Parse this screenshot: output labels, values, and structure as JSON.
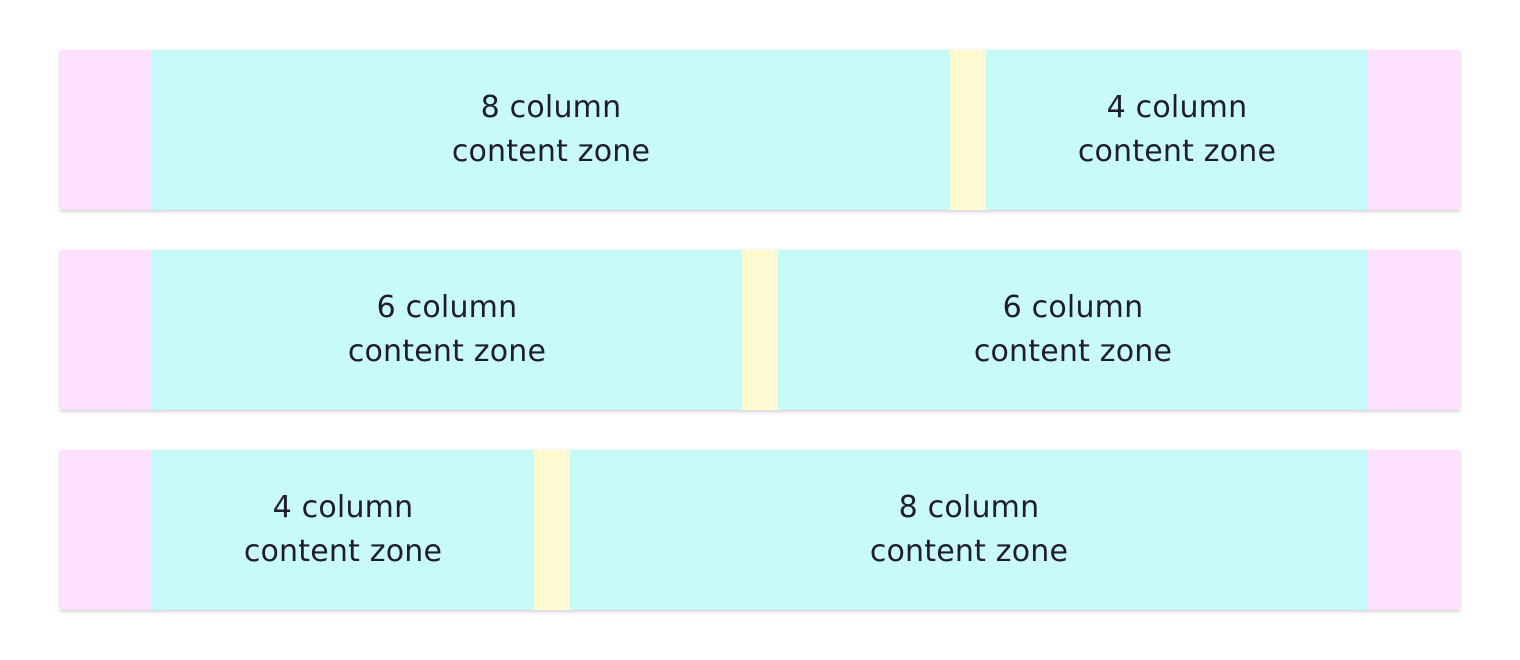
{
  "colors": {
    "margin": "#fde0fb",
    "gutter": "#fffad2",
    "content_zone": "#c8fafa",
    "text": "#1f1d2b"
  },
  "rows": [
    {
      "zones": [
        {
          "line1": "8 column",
          "line2": "content zone"
        },
        {
          "line1": "4 column",
          "line2": "content zone"
        }
      ]
    },
    {
      "zones": [
        {
          "line1": "6 column",
          "line2": "content zone"
        },
        {
          "line1": "6 column",
          "line2": "content zone"
        }
      ]
    },
    {
      "zones": [
        {
          "line1": "4 column",
          "line2": "content zone"
        },
        {
          "line1": "8 column",
          "line2": "content zone"
        }
      ]
    }
  ]
}
